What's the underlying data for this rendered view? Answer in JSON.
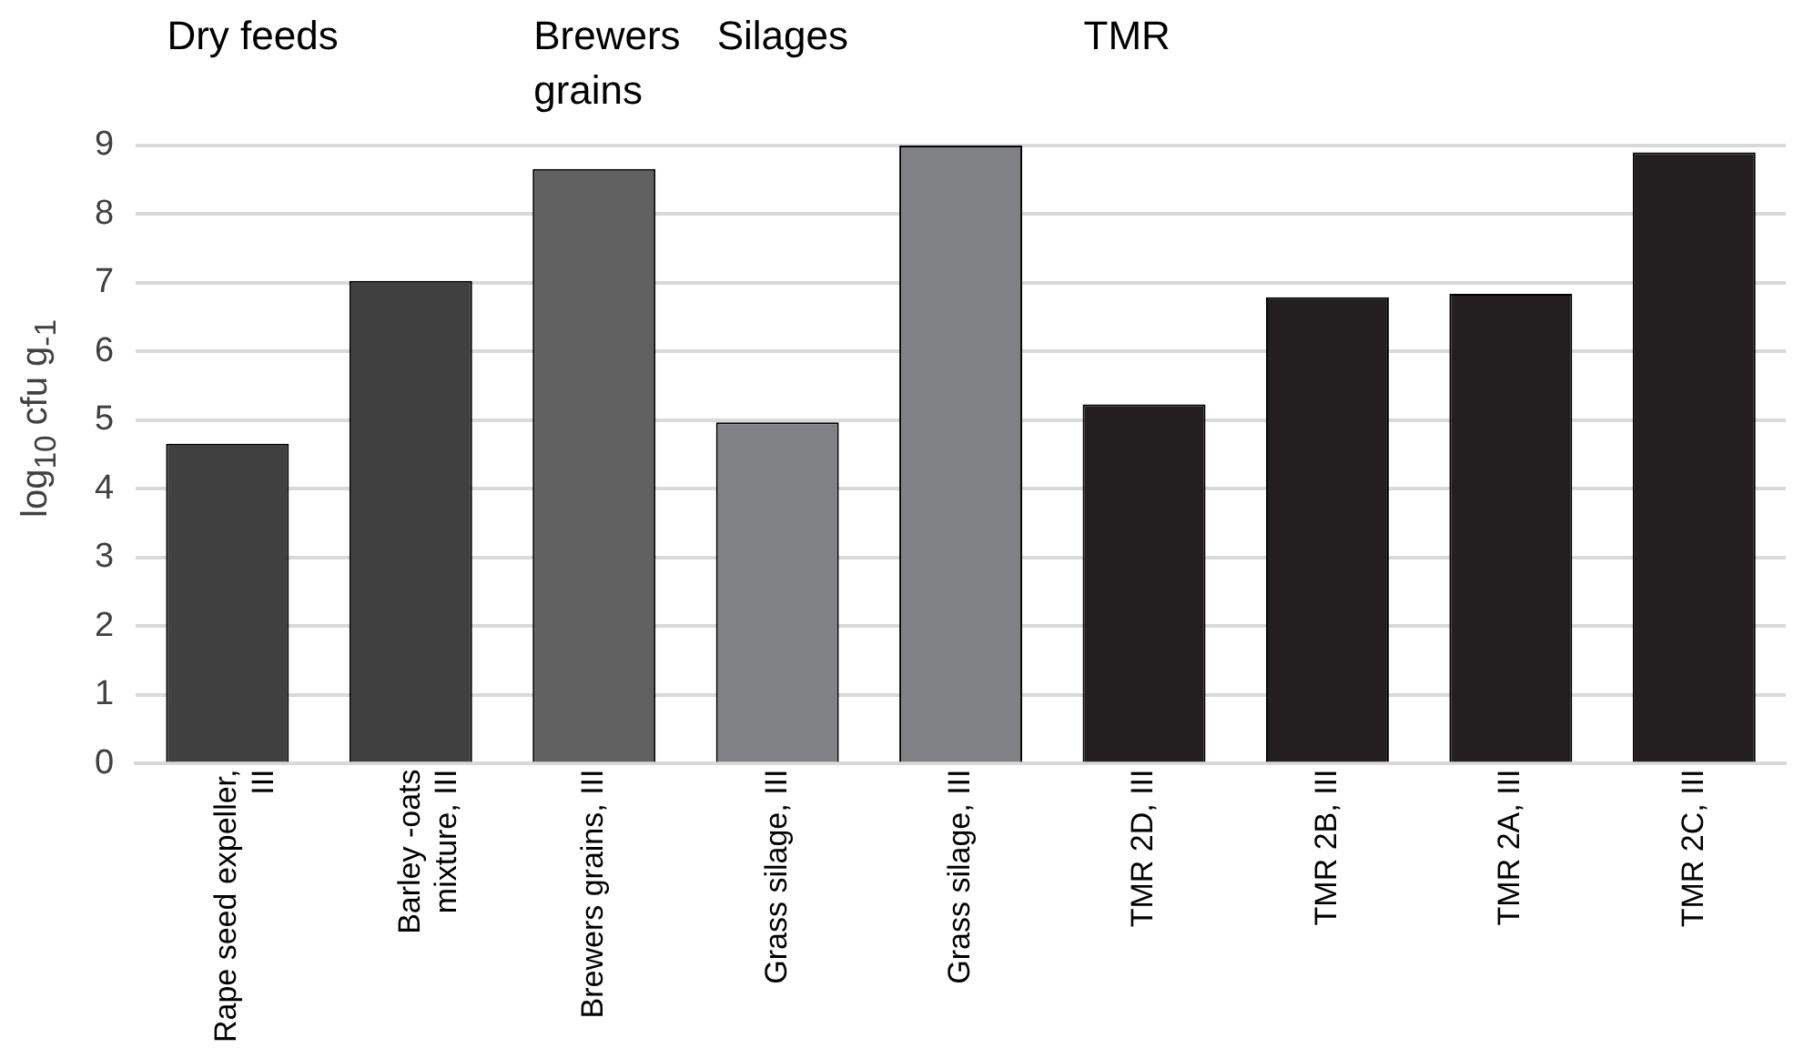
{
  "chart_data": {
    "type": "bar",
    "ylabel": "log$_{10}$ cfu g$_{-1}$",
    "categories": [
      "Rape seed expeller, III",
      "Barley -oats mixture, III",
      "Brewers grains, III",
      "Grass silage, III",
      "Grass silage, III",
      "TMR 2D, III",
      "TMR 2B, III",
      "TMR 2A, III",
      "TMR 2C, III"
    ],
    "values": [
      4.66,
      7.03,
      8.66,
      4.97,
      9.0,
      5.23,
      6.79,
      6.84,
      8.9
    ],
    "colors": [
      "#404040",
      "#404040",
      "#606060",
      "#808184",
      "#808184",
      "#231f20",
      "#231f20",
      "#231f20",
      "#231f20"
    ],
    "ylim": [
      0,
      9
    ],
    "yticks": [
      0,
      1,
      2,
      3,
      4,
      5,
      6,
      7,
      8,
      9
    ],
    "grid": "y",
    "annotations": [
      "Dry feeds",
      "Brewers grains",
      "Silages",
      "TMR"
    ]
  }
}
